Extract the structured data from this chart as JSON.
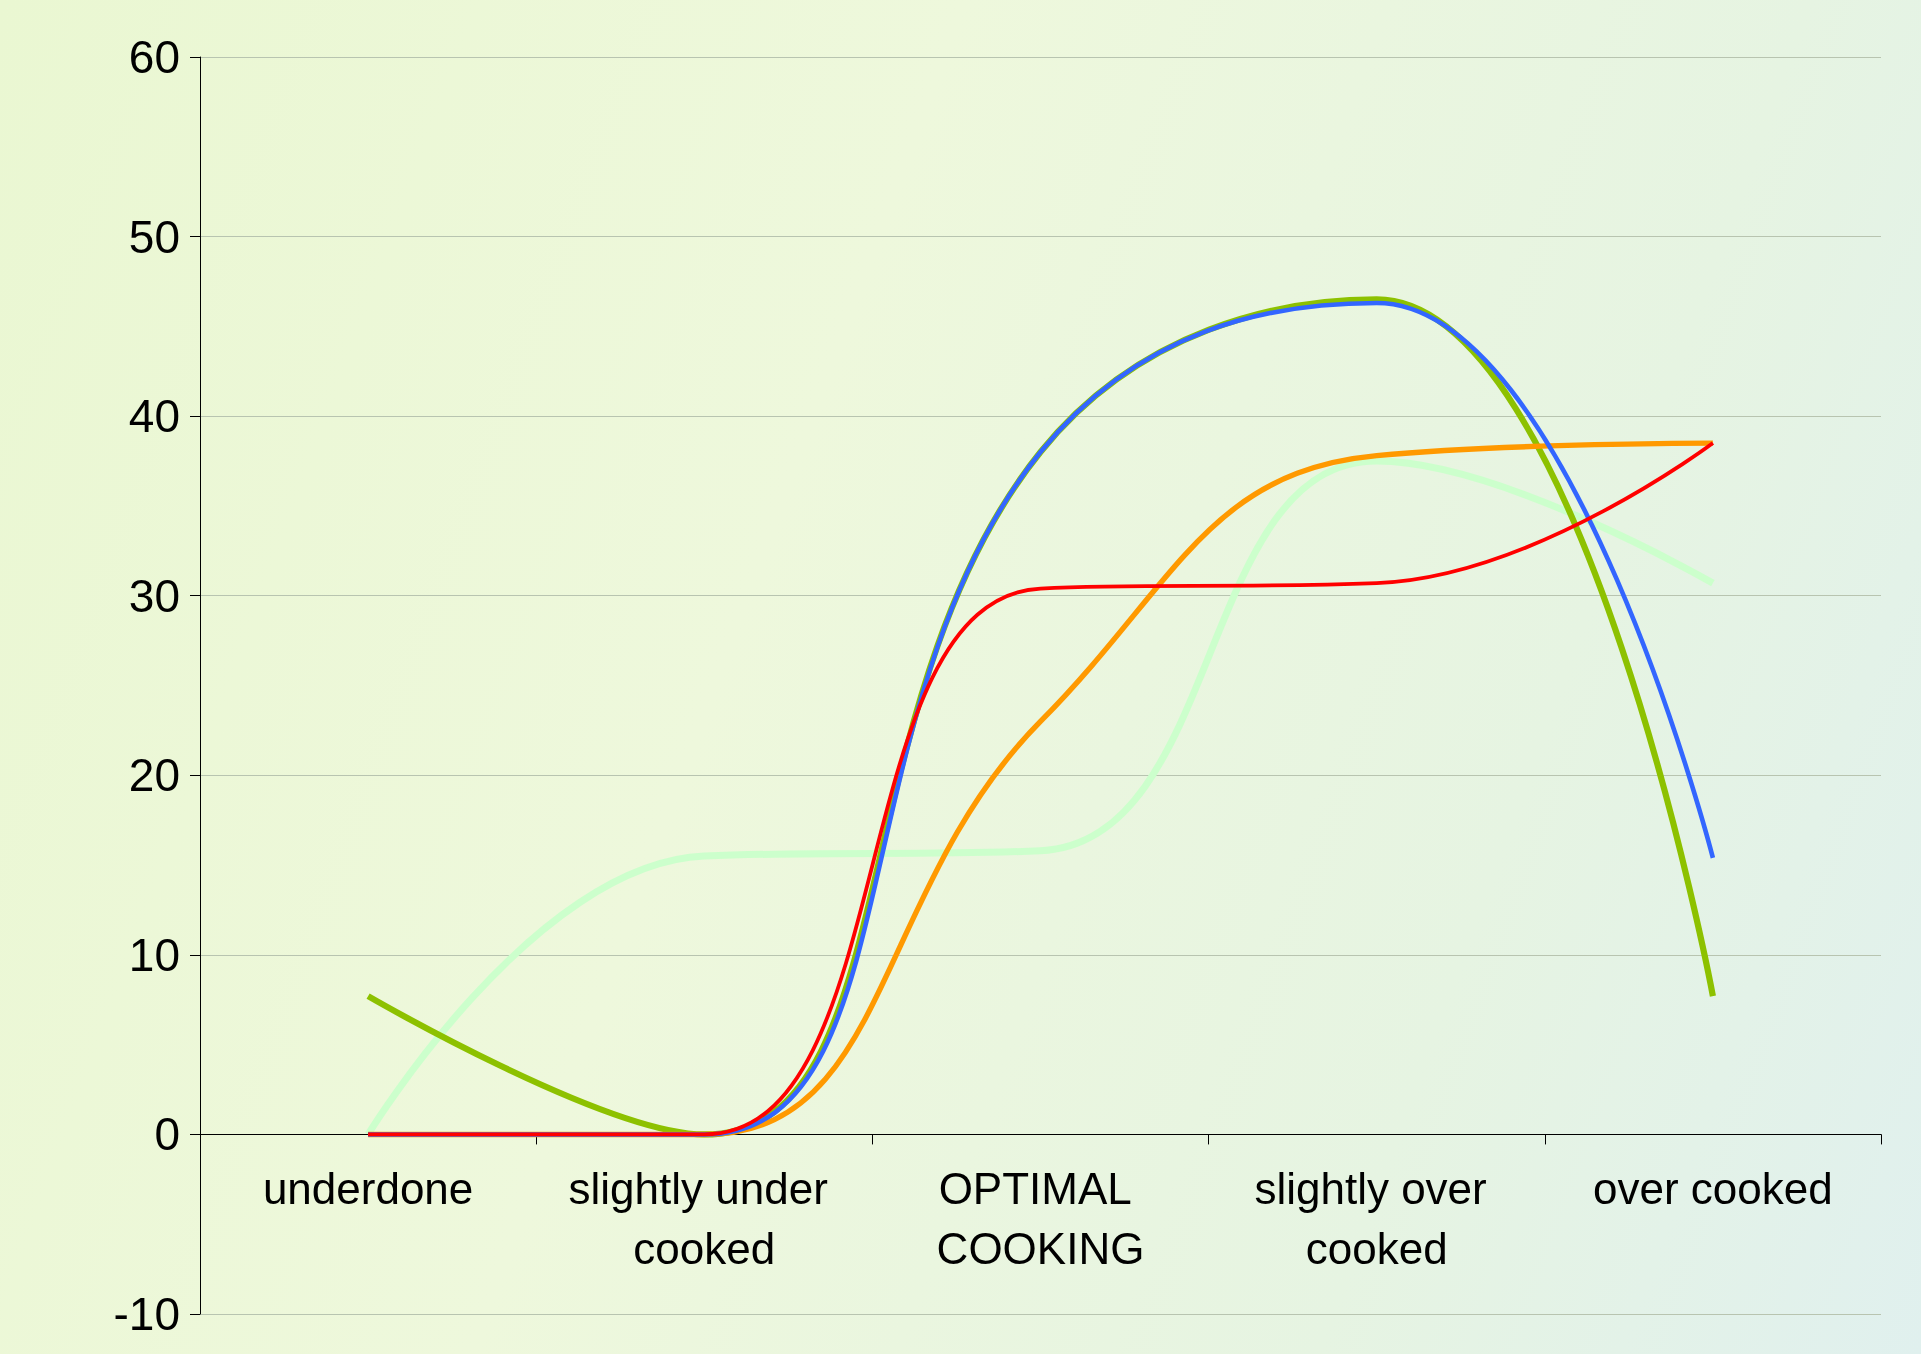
{
  "chart_data": {
    "type": "line",
    "categories": [
      "underdone",
      "slightly under cooked",
      "OPTIMAL COOKING",
      "slightly over cooked",
      "over cooked"
    ],
    "series": [
      {
        "color": "#ccffcc",
        "values": [
          0,
          15.5,
          15.8,
          37.5,
          30.7
        ]
      },
      {
        "color": "#8dc100",
        "values": [
          7.7,
          0,
          38,
          46.5,
          7.7
        ]
      },
      {
        "color": "#ff9900",
        "values": [
          0,
          0,
          23,
          37.8,
          38.5
        ]
      },
      {
        "color": "#3366ff",
        "values": [
          0,
          0,
          38,
          46.3,
          15.4
        ]
      },
      {
        "color": "#ff0000",
        "values": [
          0,
          0,
          30.4,
          30.7,
          38.5
        ]
      }
    ],
    "ylim": [
      -10,
      60
    ],
    "yticks": [
      -10,
      0,
      10,
      20,
      30,
      40,
      50,
      60
    ],
    "grid": "y",
    "marker": "none",
    "line_style": "solid"
  }
}
